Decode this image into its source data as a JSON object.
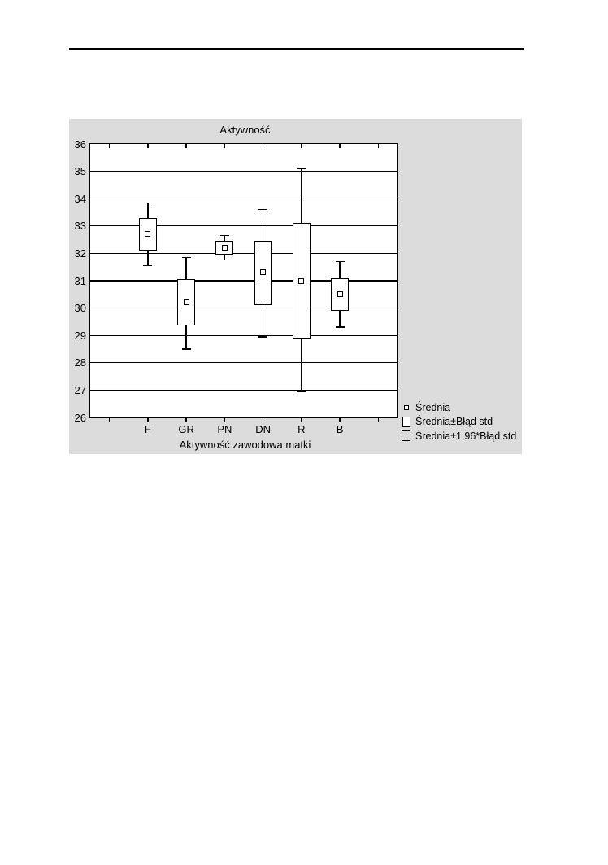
{
  "chart_data": {
    "type": "box-whisker-mean",
    "title": "Aktywność",
    "xlabel": "Aktywność zawodowa matki",
    "ylabel": "",
    "categories": [
      "F",
      "GR",
      "PN",
      "DN",
      "R",
      "B"
    ],
    "ylim": [
      26,
      36
    ],
    "yticks": [
      26,
      27,
      28,
      29,
      30,
      31,
      32,
      33,
      34,
      35,
      36
    ],
    "grid": "horizontal",
    "legend_position": "bottom-right",
    "series": [
      {
        "category": "F",
        "mean": 32.7,
        "box_low": 32.1,
        "box_high": 33.3,
        "whisker_low": 31.55,
        "whisker_high": 33.85
      },
      {
        "category": "GR",
        "mean": 30.2,
        "box_low": 29.35,
        "box_high": 31.05,
        "whisker_low": 28.5,
        "whisker_high": 31.85
      },
      {
        "category": "PN",
        "mean": 32.2,
        "box_low": 31.95,
        "box_high": 32.45,
        "whisker_low": 31.75,
        "whisker_high": 32.65
      },
      {
        "category": "DN",
        "mean": 31.3,
        "box_low": 30.1,
        "box_high": 32.45,
        "whisker_low": 28.95,
        "whisker_high": 33.6
      },
      {
        "category": "R",
        "mean": 31.0,
        "box_low": 28.9,
        "box_high": 33.1,
        "whisker_low": 26.95,
        "whisker_high": 35.1
      },
      {
        "category": "B",
        "mean": 30.5,
        "box_low": 29.9,
        "box_high": 31.1,
        "whisker_low": 29.3,
        "whisker_high": 31.7
      }
    ],
    "legend": {
      "entries": [
        {
          "icon": "mean-square-icon",
          "label": "Średnia"
        },
        {
          "icon": "box-icon",
          "label": "Średnia±Błąd std"
        },
        {
          "icon": "whisker-icon",
          "label": "Średnia±1,96*Błąd std"
        }
      ]
    },
    "colors": {
      "panel_background": "#dcdcdc",
      "plot_background": "#ffffff",
      "line": "#000000",
      "box_fill": "#ffffff",
      "page_background": "#ffffff"
    }
  }
}
